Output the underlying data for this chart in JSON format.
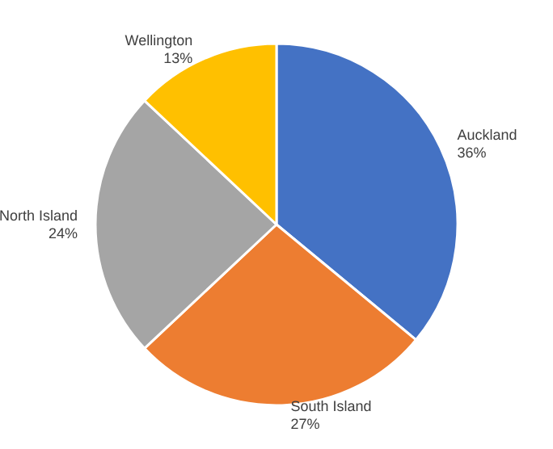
{
  "chart_data": {
    "type": "pie",
    "categories": [
      "Auckland",
      "South Island",
      "North Island",
      "Wellington"
    ],
    "values": [
      36,
      27,
      24,
      13
    ],
    "value_labels": [
      "36%",
      "27%",
      "24%",
      "13%"
    ],
    "colors": [
      "#4472c4",
      "#ed7d31",
      "#a5a5a5",
      "#ffc000"
    ],
    "legend": false
  }
}
